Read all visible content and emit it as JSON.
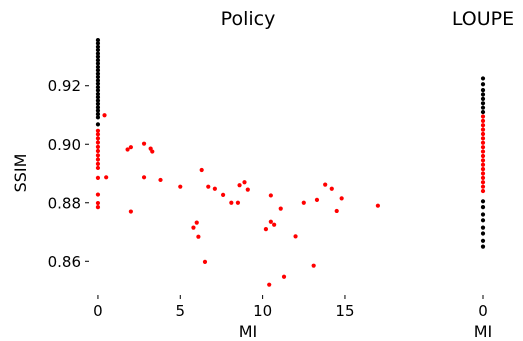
{
  "chart_data": [
    {
      "type": "scatter",
      "title": "Policy",
      "xlabel": "MI",
      "ylabel": "SSIM",
      "xlim": [
        -0.3,
        19.8
      ],
      "ylim": [
        0.8495,
        0.937
      ],
      "xticks": [
        "0",
        "5",
        "10",
        "15"
      ],
      "yticks": [
        "0.86",
        "0.88",
        "0.90",
        "0.92"
      ],
      "grid": false,
      "series": [
        {
          "color": "#000000",
          "points": [
            [
              0,
              0.9356
            ],
            [
              0,
              0.9345
            ],
            [
              0,
              0.9333
            ],
            [
              0,
              0.9322
            ],
            [
              0,
              0.931
            ],
            [
              0,
              0.9299
            ],
            [
              0,
              0.9287
            ],
            [
              0,
              0.9276
            ],
            [
              0,
              0.9264
            ],
            [
              0,
              0.9253
            ],
            [
              0,
              0.9241
            ],
            [
              0,
              0.923
            ],
            [
              0,
              0.9218
            ],
            [
              0,
              0.9207
            ],
            [
              0,
              0.9195
            ],
            [
              0,
              0.9184
            ],
            [
              0,
              0.9172
            ],
            [
              0,
              0.9161
            ],
            [
              0,
              0.9149
            ],
            [
              0,
              0.9138
            ],
            [
              0,
              0.9126
            ],
            [
              0,
              0.9115
            ],
            [
              0,
              0.9103
            ],
            [
              0,
              0.9092
            ],
            [
              0,
              0.9068
            ]
          ]
        },
        {
          "color": "#ff0000",
          "points": [
            [
              0,
              0.9046
            ],
            [
              0,
              0.9034
            ],
            [
              0,
              0.902
            ],
            [
              0,
              0.9006
            ],
            [
              0,
              0.8991
            ],
            [
              0,
              0.8977
            ],
            [
              0,
              0.8962
            ],
            [
              0,
              0.8948
            ],
            [
              0,
              0.8933
            ],
            [
              0,
              0.8919
            ],
            [
              0,
              0.8885
            ],
            [
              0,
              0.8828
            ],
            [
              0,
              0.8799
            ],
            [
              0,
              0.8785
            ],
            [
              0.4,
              0.9099
            ],
            [
              0.5,
              0.8887
            ],
            [
              1.8,
              0.8982
            ],
            [
              2.0,
              0.899
            ],
            [
              2.0,
              0.877
            ],
            [
              2.8,
              0.9002
            ],
            [
              2.8,
              0.8887
            ],
            [
              3.2,
              0.8985
            ],
            [
              3.3,
              0.8975
            ],
            [
              3.8,
              0.8878
            ],
            [
              5.0,
              0.8855
            ],
            [
              5.8,
              0.8715
            ],
            [
              6.0,
              0.8732
            ],
            [
              6.1,
              0.8684
            ],
            [
              6.3,
              0.8912
            ],
            [
              6.5,
              0.8598
            ],
            [
              6.7,
              0.8855
            ],
            [
              7.1,
              0.8848
            ],
            [
              7.6,
              0.8827
            ],
            [
              8.1,
              0.88
            ],
            [
              8.5,
              0.88
            ],
            [
              8.6,
              0.886
            ],
            [
              8.9,
              0.887
            ],
            [
              9.1,
              0.8845
            ],
            [
              10.2,
              0.871
            ],
            [
              10.4,
              0.852
            ],
            [
              10.5,
              0.8735
            ],
            [
              10.5,
              0.8825
            ],
            [
              10.7,
              0.8725
            ],
            [
              11.1,
              0.878
            ],
            [
              11.3,
              0.8547
            ],
            [
              12.0,
              0.8685
            ],
            [
              12.5,
              0.88
            ],
            [
              13.1,
              0.8585
            ],
            [
              13.3,
              0.881
            ],
            [
              13.8,
              0.8862
            ],
            [
              14.2,
              0.8848
            ],
            [
              14.5,
              0.8772
            ],
            [
              14.8,
              0.8815
            ],
            [
              17.0,
              0.879
            ]
          ]
        }
      ]
    },
    {
      "type": "scatter",
      "title": "LOUPE",
      "xlabel": "MI",
      "ylabel": "",
      "xlim": [
        -1,
        1
      ],
      "ylim": [
        0.8495,
        0.937
      ],
      "xticks": [
        "0"
      ],
      "grid": false,
      "series": [
        {
          "color": "#000000",
          "points": [
            [
              0,
              0.9225
            ],
            [
              0,
              0.9205
            ],
            [
              0,
              0.9185
            ],
            [
              0,
              0.917
            ],
            [
              0,
              0.9155
            ],
            [
              0,
              0.914
            ],
            [
              0,
              0.9125
            ],
            [
              0,
              0.911
            ],
            [
              0,
              0.8805
            ],
            [
              0,
              0.8785
            ],
            [
              0,
              0.876
            ],
            [
              0,
              0.874
            ],
            [
              0,
              0.8715
            ],
            [
              0,
              0.8695
            ],
            [
              0,
              0.867
            ],
            [
              0,
              0.865
            ]
          ]
        },
        {
          "color": "#ff0000",
          "points": [
            [
              0,
              0.9095
            ],
            [
              0,
              0.908
            ],
            [
              0,
              0.9065
            ],
            [
              0,
              0.905
            ],
            [
              0,
              0.9035
            ],
            [
              0,
              0.902
            ],
            [
              0,
              0.9005
            ],
            [
              0,
              0.899
            ],
            [
              0,
              0.8975
            ],
            [
              0,
              0.896
            ],
            [
              0,
              0.8945
            ],
            [
              0,
              0.893
            ],
            [
              0,
              0.8915
            ],
            [
              0,
              0.89
            ],
            [
              0,
              0.8885
            ],
            [
              0,
              0.887
            ],
            [
              0,
              0.8855
            ],
            [
              0,
              0.884
            ]
          ]
        }
      ]
    }
  ]
}
